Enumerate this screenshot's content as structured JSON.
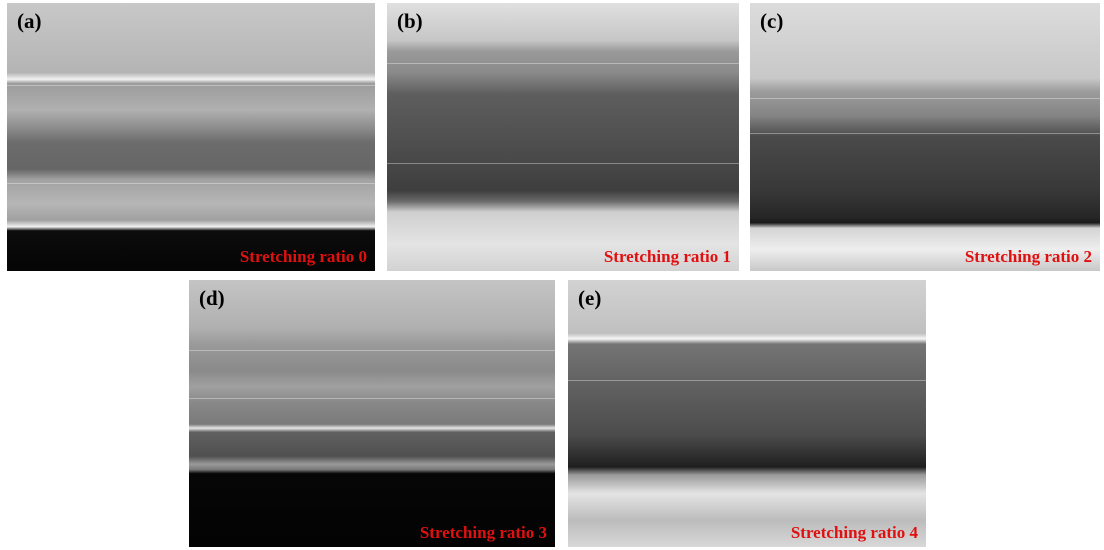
{
  "panels": [
    {
      "label": "(a)",
      "caption": "Stretching ratio 0"
    },
    {
      "label": "(b)",
      "caption": "Stretching ratio 1"
    },
    {
      "label": "(c)",
      "caption": "Stretching ratio 2"
    },
    {
      "label": "(d)",
      "caption": "Stretching ratio 3"
    },
    {
      "label": "(e)",
      "caption": "Stretching ratio 4"
    }
  ]
}
